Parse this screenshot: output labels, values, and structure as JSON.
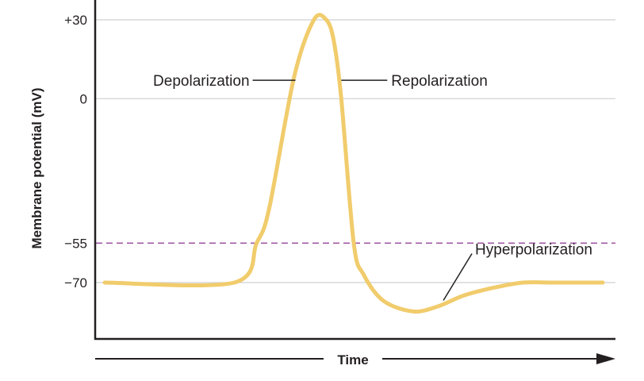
{
  "chart_data": {
    "type": "line",
    "title": "",
    "xlabel": "Time",
    "ylabel": "Membrane potential (mV)",
    "xlim": [
      0,
      100
    ],
    "ylim": [
      -90,
      40
    ],
    "yticks": [
      {
        "value": 30,
        "label": "+30"
      },
      {
        "value": 0,
        "label": "0"
      },
      {
        "value": -55,
        "label": "−55"
      },
      {
        "value": -70,
        "label": "−70"
      }
    ],
    "threshold": {
      "value": -55,
      "style": "dashed",
      "color": "#a05aa5"
    },
    "gridlines": [
      30,
      0,
      -70
    ],
    "series": [
      {
        "color": "#f1cc6c",
        "x": [
          0,
          26,
          30.5,
          33,
          38,
          42,
          44.5,
          46,
          47.5,
          50,
          52,
          56,
          62,
          67,
          72,
          78,
          84,
          90,
          100
        ],
        "y": [
          -70,
          -70,
          -55,
          -42,
          8,
          30,
          30,
          22,
          0,
          -55,
          -67,
          -77,
          -81,
          -79,
          -75,
          -72,
          -70,
          -70,
          -70
        ]
      }
    ],
    "annotations": [
      {
        "text": "Depolarization",
        "x": 38.3,
        "y": 7
      },
      {
        "text": "Repolarization",
        "x": 47.5,
        "y": 7
      },
      {
        "text": "Hyperpolarization",
        "x": 68,
        "y": -78
      }
    ]
  },
  "colors": {
    "trace": "#f1cc6c",
    "threshold": "#a05aa5",
    "grid": "#cfd0d2",
    "axis": "#231f20"
  }
}
